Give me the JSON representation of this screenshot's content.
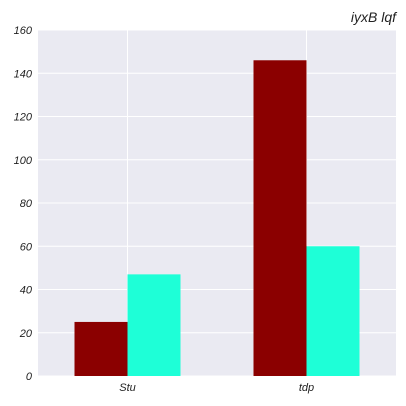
{
  "chart_data": {
    "type": "bar",
    "title": "iyxB lqf",
    "xlabel": "",
    "ylabel": "",
    "categories": [
      "Stu",
      "tdp"
    ],
    "series": [
      {
        "values": [
          25,
          146
        ],
        "color": "#8b0000"
      },
      {
        "values": [
          47,
          60
        ],
        "color": "#1effd7"
      }
    ],
    "ylim": [
      0,
      160
    ],
    "yticks": [
      0,
      20,
      40,
      60,
      80,
      100,
      120,
      140,
      160
    ],
    "grid": true,
    "background": "#eaeaf2",
    "grid_color": "#ffffff"
  }
}
